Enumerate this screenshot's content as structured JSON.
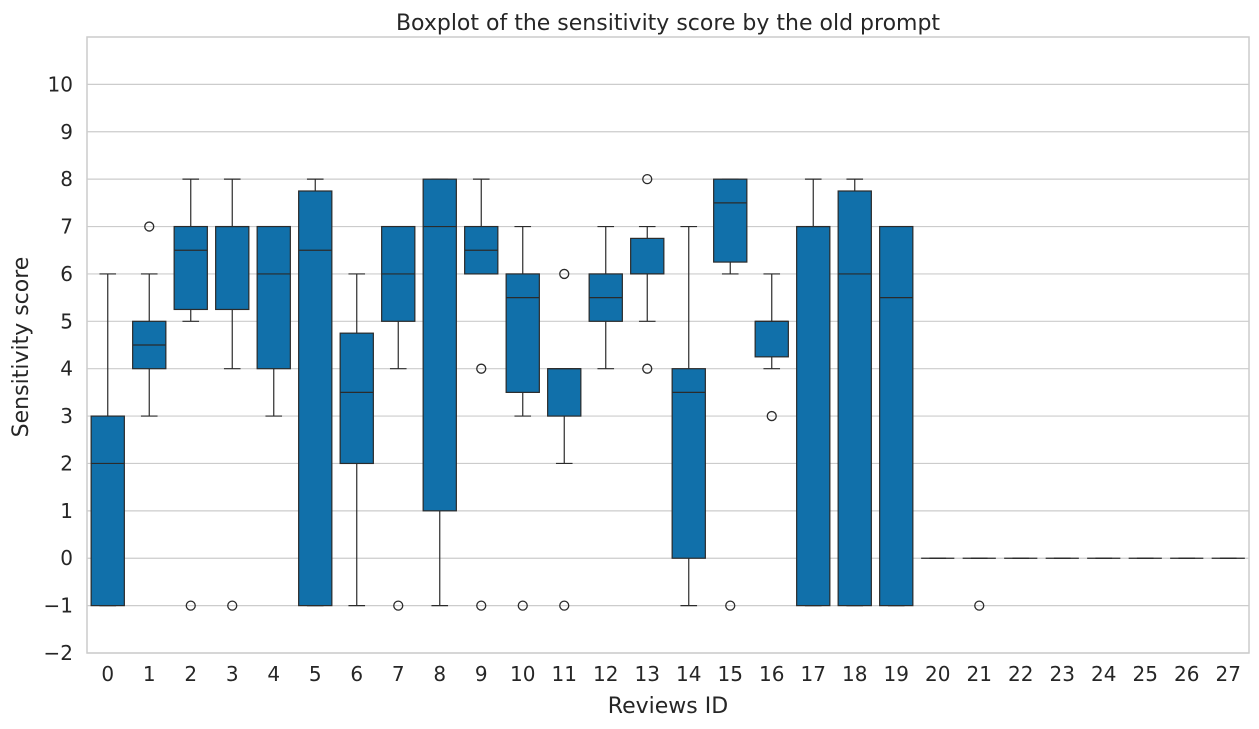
{
  "chart_data": {
    "type": "boxplot",
    "title": "Boxplot of the sensitivity score by the old prompt",
    "xlabel": "Reviews ID",
    "ylabel": "Sensitivity score",
    "ylim": [
      -2,
      11
    ],
    "yticks": [
      -2,
      -1,
      0,
      1,
      2,
      3,
      4,
      5,
      6,
      7,
      8,
      9,
      10
    ],
    "grid": "horizontal",
    "box_color": "#1170aa",
    "categories": [
      "0",
      "1",
      "2",
      "3",
      "4",
      "5",
      "6",
      "7",
      "8",
      "9",
      "10",
      "11",
      "12",
      "13",
      "14",
      "15",
      "16",
      "17",
      "18",
      "19",
      "20",
      "21",
      "22",
      "23",
      "24",
      "25",
      "26",
      "27"
    ],
    "boxes": [
      {
        "id": "0",
        "whislo": -1,
        "q1": -1,
        "med": 2,
        "q3": 3,
        "whishi": 6,
        "fliers": []
      },
      {
        "id": "1",
        "whislo": 3,
        "q1": 4,
        "med": 4.5,
        "q3": 5,
        "whishi": 6,
        "fliers": [
          7
        ]
      },
      {
        "id": "2",
        "whislo": 5,
        "q1": 5.25,
        "med": 6.5,
        "q3": 7,
        "whishi": 8,
        "fliers": [
          -1
        ]
      },
      {
        "id": "3",
        "whislo": 4,
        "q1": 5.25,
        "med": 7,
        "q3": 7,
        "whishi": 8,
        "fliers": [
          -1
        ]
      },
      {
        "id": "4",
        "whislo": 3,
        "q1": 4,
        "med": 6,
        "q3": 7,
        "whishi": 7,
        "fliers": []
      },
      {
        "id": "5",
        "whislo": -1,
        "q1": -1,
        "med": 6.5,
        "q3": 7.75,
        "whishi": 8,
        "fliers": []
      },
      {
        "id": "6",
        "whislo": -1,
        "q1": 2,
        "med": 3.5,
        "q3": 4.75,
        "whishi": 6,
        "fliers": []
      },
      {
        "id": "7",
        "whislo": 4,
        "q1": 5,
        "med": 6,
        "q3": 7,
        "whishi": 7,
        "fliers": [
          -1
        ]
      },
      {
        "id": "8",
        "whislo": -1,
        "q1": 1,
        "med": 7,
        "q3": 8,
        "whishi": 8,
        "fliers": []
      },
      {
        "id": "9",
        "whislo": 6,
        "q1": 6,
        "med": 6.5,
        "q3": 7,
        "whishi": 8,
        "fliers": [
          4,
          -1
        ]
      },
      {
        "id": "10",
        "whislo": 3,
        "q1": 3.5,
        "med": 5.5,
        "q3": 6,
        "whishi": 7,
        "fliers": [
          -1
        ]
      },
      {
        "id": "11",
        "whislo": 2,
        "q1": 3,
        "med": 4,
        "q3": 4,
        "whishi": 4,
        "fliers": [
          6,
          -1
        ]
      },
      {
        "id": "12",
        "whislo": 4,
        "q1": 5,
        "med": 5.5,
        "q3": 6,
        "whishi": 7,
        "fliers": []
      },
      {
        "id": "13",
        "whislo": 5,
        "q1": 6,
        "med": 6,
        "q3": 6.75,
        "whishi": 7,
        "fliers": [
          8,
          4
        ]
      },
      {
        "id": "14",
        "whislo": -1,
        "q1": 0,
        "med": 3.5,
        "q3": 4,
        "whishi": 7,
        "fliers": []
      },
      {
        "id": "15",
        "whislo": 6,
        "q1": 6.25,
        "med": 7.5,
        "q3": 8,
        "whishi": 8,
        "fliers": [
          -1
        ]
      },
      {
        "id": "16",
        "whislo": 4,
        "q1": 4.25,
        "med": 5,
        "q3": 5,
        "whishi": 6,
        "fliers": [
          3
        ]
      },
      {
        "id": "17",
        "whislo": -1,
        "q1": -1,
        "med": 7,
        "q3": 7,
        "whishi": 8,
        "fliers": []
      },
      {
        "id": "18",
        "whislo": -1,
        "q1": -1,
        "med": 6,
        "q3": 7.75,
        "whishi": 8,
        "fliers": []
      },
      {
        "id": "19",
        "whislo": -1,
        "q1": -1,
        "med": 5.5,
        "q3": 7,
        "whishi": 7,
        "fliers": []
      },
      {
        "id": "20",
        "whislo": 0,
        "q1": 0,
        "med": 0,
        "q3": 0,
        "whishi": 0,
        "fliers": []
      },
      {
        "id": "21",
        "whislo": 0,
        "q1": 0,
        "med": 0,
        "q3": 0,
        "whishi": 0,
        "fliers": [
          -1
        ]
      },
      {
        "id": "22",
        "whislo": 0,
        "q1": 0,
        "med": 0,
        "q3": 0,
        "whishi": 0,
        "fliers": []
      },
      {
        "id": "23",
        "whislo": 0,
        "q1": 0,
        "med": 0,
        "q3": 0,
        "whishi": 0,
        "fliers": []
      },
      {
        "id": "24",
        "whislo": 0,
        "q1": 0,
        "med": 0,
        "q3": 0,
        "whishi": 0,
        "fliers": []
      },
      {
        "id": "25",
        "whislo": 0,
        "q1": 0,
        "med": 0,
        "q3": 0,
        "whishi": 0,
        "fliers": []
      },
      {
        "id": "26",
        "whislo": 0,
        "q1": 0,
        "med": 0,
        "q3": 0,
        "whishi": 0,
        "fliers": []
      },
      {
        "id": "27",
        "whislo": 0,
        "q1": 0,
        "med": 0,
        "q3": 0,
        "whishi": 0,
        "fliers": []
      }
    ]
  }
}
